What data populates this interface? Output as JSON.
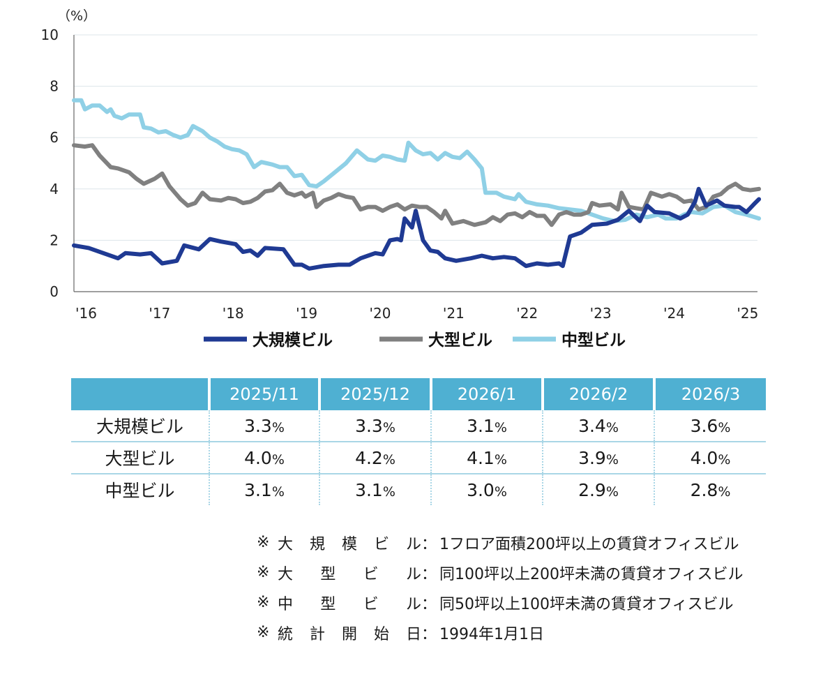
{
  "chart_data": {
    "type": "line",
    "unit_label": "（%）",
    "ylim": [
      0,
      10
    ],
    "y_ticks": [
      0,
      2,
      4,
      6,
      8,
      10
    ],
    "xlim": [
      2016.0,
      2025.3
    ],
    "x_ticks": [
      {
        "value": 2016,
        "label": "'16"
      },
      {
        "value": 2017,
        "label": "'17"
      },
      {
        "value": 2018,
        "label": "'18"
      },
      {
        "value": 2019,
        "label": "'19"
      },
      {
        "value": 2020,
        "label": "'20"
      },
      {
        "value": 2021,
        "label": "'21"
      },
      {
        "value": 2022,
        "label": "'22"
      },
      {
        "value": 2023,
        "label": "'23"
      },
      {
        "value": 2024,
        "label": "'24"
      },
      {
        "value": 2025,
        "label": "'25"
      }
    ],
    "grid": true,
    "legend": "bottom",
    "series": [
      {
        "name": "大規模ビル",
        "color": "#1f3a93",
        "points": [
          [
            2016.0,
            1.8
          ],
          [
            2016.2,
            1.7
          ],
          [
            2016.4,
            1.5
          ],
          [
            2016.6,
            1.3
          ],
          [
            2016.7,
            1.5
          ],
          [
            2016.9,
            1.45
          ],
          [
            2017.05,
            1.5
          ],
          [
            2017.2,
            1.1
          ],
          [
            2017.4,
            1.2
          ],
          [
            2017.5,
            1.8
          ],
          [
            2017.7,
            1.65
          ],
          [
            2017.85,
            2.05
          ],
          [
            2018.0,
            1.95
          ],
          [
            2018.2,
            1.85
          ],
          [
            2018.3,
            1.55
          ],
          [
            2018.4,
            1.6
          ],
          [
            2018.5,
            1.4
          ],
          [
            2018.6,
            1.7
          ],
          [
            2018.85,
            1.65
          ],
          [
            2019.0,
            1.05
          ],
          [
            2019.1,
            1.05
          ],
          [
            2019.2,
            0.9
          ],
          [
            2019.4,
            1.0
          ],
          [
            2019.6,
            1.05
          ],
          [
            2019.75,
            1.05
          ],
          [
            2019.9,
            1.3
          ],
          [
            2020.0,
            1.4
          ],
          [
            2020.1,
            1.5
          ],
          [
            2020.2,
            1.45
          ],
          [
            2020.3,
            2.0
          ],
          [
            2020.4,
            2.05
          ],
          [
            2020.45,
            2.0
          ],
          [
            2020.5,
            2.85
          ],
          [
            2020.6,
            2.5
          ],
          [
            2020.65,
            3.15
          ],
          [
            2020.75,
            2.0
          ],
          [
            2020.85,
            1.6
          ],
          [
            2020.95,
            1.55
          ],
          [
            2021.05,
            1.3
          ],
          [
            2021.2,
            1.2
          ],
          [
            2021.4,
            1.3
          ],
          [
            2021.55,
            1.4
          ],
          [
            2021.7,
            1.3
          ],
          [
            2021.85,
            1.35
          ],
          [
            2022.0,
            1.3
          ],
          [
            2022.15,
            1.0
          ],
          [
            2022.3,
            1.1
          ],
          [
            2022.45,
            1.05
          ],
          [
            2022.6,
            1.1
          ],
          [
            2022.65,
            1.0
          ],
          [
            2022.75,
            2.15
          ],
          [
            2022.9,
            2.3
          ],
          [
            2023.05,
            2.6
          ],
          [
            2023.25,
            2.65
          ],
          [
            2023.4,
            2.8
          ],
          [
            2023.55,
            3.15
          ],
          [
            2023.7,
            2.75
          ],
          [
            2023.8,
            3.35
          ],
          [
            2023.9,
            3.1
          ],
          [
            2024.1,
            3.05
          ],
          [
            2024.25,
            2.85
          ],
          [
            2024.35,
            3.0
          ],
          [
            2024.45,
            3.5
          ],
          [
            2024.5,
            4.0
          ],
          [
            2024.6,
            3.35
          ],
          [
            2024.75,
            3.55
          ],
          [
            2024.85,
            3.35
          ],
          [
            2025.0,
            3.3
          ],
          [
            2025.05,
            3.3
          ],
          [
            2025.15,
            3.1
          ],
          [
            2025.25,
            3.4
          ],
          [
            2025.32,
            3.6
          ]
        ]
      },
      {
        "name": "大型ビル",
        "color": "#808080",
        "points": [
          [
            2016.0,
            5.7
          ],
          [
            2016.15,
            5.65
          ],
          [
            2016.25,
            5.7
          ],
          [
            2016.35,
            5.3
          ],
          [
            2016.5,
            4.85
          ],
          [
            2016.6,
            4.8
          ],
          [
            2016.75,
            4.65
          ],
          [
            2016.85,
            4.4
          ],
          [
            2016.95,
            4.2
          ],
          [
            2017.1,
            4.4
          ],
          [
            2017.2,
            4.6
          ],
          [
            2017.3,
            4.1
          ],
          [
            2017.45,
            3.6
          ],
          [
            2017.55,
            3.35
          ],
          [
            2017.65,
            3.45
          ],
          [
            2017.75,
            3.85
          ],
          [
            2017.85,
            3.6
          ],
          [
            2018.0,
            3.55
          ],
          [
            2018.1,
            3.65
          ],
          [
            2018.2,
            3.6
          ],
          [
            2018.3,
            3.45
          ],
          [
            2018.4,
            3.5
          ],
          [
            2018.5,
            3.65
          ],
          [
            2018.6,
            3.9
          ],
          [
            2018.7,
            3.95
          ],
          [
            2018.8,
            4.2
          ],
          [
            2018.9,
            3.85
          ],
          [
            2019.0,
            3.75
          ],
          [
            2019.1,
            3.85
          ],
          [
            2019.15,
            3.7
          ],
          [
            2019.25,
            3.85
          ],
          [
            2019.3,
            3.3
          ],
          [
            2019.4,
            3.55
          ],
          [
            2019.5,
            3.65
          ],
          [
            2019.6,
            3.8
          ],
          [
            2019.7,
            3.7
          ],
          [
            2019.8,
            3.65
          ],
          [
            2019.9,
            3.2
          ],
          [
            2020.0,
            3.3
          ],
          [
            2020.1,
            3.3
          ],
          [
            2020.2,
            3.15
          ],
          [
            2020.3,
            3.3
          ],
          [
            2020.4,
            3.4
          ],
          [
            2020.5,
            3.2
          ],
          [
            2020.6,
            3.35
          ],
          [
            2020.7,
            3.3
          ],
          [
            2020.8,
            3.3
          ],
          [
            2020.9,
            3.1
          ],
          [
            2021.0,
            2.85
          ],
          [
            2021.05,
            3.15
          ],
          [
            2021.15,
            2.65
          ],
          [
            2021.3,
            2.75
          ],
          [
            2021.45,
            2.6
          ],
          [
            2021.6,
            2.7
          ],
          [
            2021.7,
            2.9
          ],
          [
            2021.8,
            2.75
          ],
          [
            2021.9,
            3.0
          ],
          [
            2022.0,
            3.05
          ],
          [
            2022.1,
            2.9
          ],
          [
            2022.2,
            3.1
          ],
          [
            2022.3,
            2.95
          ],
          [
            2022.4,
            2.95
          ],
          [
            2022.5,
            2.6
          ],
          [
            2022.6,
            3.0
          ],
          [
            2022.7,
            3.1
          ],
          [
            2022.8,
            3.0
          ],
          [
            2022.9,
            3.0
          ],
          [
            2023.0,
            3.1
          ],
          [
            2023.05,
            3.45
          ],
          [
            2023.15,
            3.35
          ],
          [
            2023.3,
            3.4
          ],
          [
            2023.4,
            3.2
          ],
          [
            2023.45,
            3.85
          ],
          [
            2023.55,
            3.3
          ],
          [
            2023.65,
            3.25
          ],
          [
            2023.75,
            3.2
          ],
          [
            2023.85,
            3.85
          ],
          [
            2024.0,
            3.7
          ],
          [
            2024.1,
            3.8
          ],
          [
            2024.2,
            3.7
          ],
          [
            2024.3,
            3.5
          ],
          [
            2024.4,
            3.55
          ],
          [
            2024.5,
            3.2
          ],
          [
            2024.6,
            3.3
          ],
          [
            2024.7,
            3.7
          ],
          [
            2024.8,
            3.8
          ],
          [
            2024.9,
            4.05
          ],
          [
            2025.0,
            4.2
          ],
          [
            2025.1,
            4.0
          ],
          [
            2025.2,
            3.95
          ],
          [
            2025.32,
            4.0
          ]
        ]
      },
      {
        "name": "中型ビル",
        "color": "#8fd0e6",
        "points": [
          [
            2016.0,
            7.45
          ],
          [
            2016.1,
            7.45
          ],
          [
            2016.15,
            7.1
          ],
          [
            2016.25,
            7.25
          ],
          [
            2016.35,
            7.25
          ],
          [
            2016.45,
            7.0
          ],
          [
            2016.5,
            7.1
          ],
          [
            2016.55,
            6.85
          ],
          [
            2016.65,
            6.75
          ],
          [
            2016.75,
            6.9
          ],
          [
            2016.9,
            6.9
          ],
          [
            2016.95,
            6.4
          ],
          [
            2017.05,
            6.35
          ],
          [
            2017.15,
            6.2
          ],
          [
            2017.25,
            6.25
          ],
          [
            2017.35,
            6.1
          ],
          [
            2017.45,
            6.0
          ],
          [
            2017.55,
            6.1
          ],
          [
            2017.62,
            6.45
          ],
          [
            2017.75,
            6.25
          ],
          [
            2017.85,
            6.0
          ],
          [
            2017.95,
            5.85
          ],
          [
            2018.05,
            5.65
          ],
          [
            2018.15,
            5.55
          ],
          [
            2018.25,
            5.5
          ],
          [
            2018.35,
            5.35
          ],
          [
            2018.45,
            4.85
          ],
          [
            2018.55,
            5.05
          ],
          [
            2018.7,
            4.95
          ],
          [
            2018.8,
            4.85
          ],
          [
            2018.9,
            4.85
          ],
          [
            2019.0,
            4.5
          ],
          [
            2019.1,
            4.55
          ],
          [
            2019.2,
            4.15
          ],
          [
            2019.3,
            4.1
          ],
          [
            2019.4,
            4.3
          ],
          [
            2019.55,
            4.65
          ],
          [
            2019.7,
            5.0
          ],
          [
            2019.85,
            5.5
          ],
          [
            2020.0,
            5.15
          ],
          [
            2020.1,
            5.1
          ],
          [
            2020.2,
            5.3
          ],
          [
            2020.3,
            5.25
          ],
          [
            2020.4,
            5.15
          ],
          [
            2020.5,
            5.1
          ],
          [
            2020.55,
            5.8
          ],
          [
            2020.65,
            5.5
          ],
          [
            2020.75,
            5.35
          ],
          [
            2020.85,
            5.4
          ],
          [
            2020.95,
            5.15
          ],
          [
            2021.05,
            5.4
          ],
          [
            2021.15,
            5.25
          ],
          [
            2021.25,
            5.2
          ],
          [
            2021.35,
            5.45
          ],
          [
            2021.45,
            5.15
          ],
          [
            2021.55,
            4.8
          ],
          [
            2021.6,
            3.85
          ],
          [
            2021.75,
            3.85
          ],
          [
            2021.85,
            3.7
          ],
          [
            2022.0,
            3.6
          ],
          [
            2022.05,
            3.8
          ],
          [
            2022.15,
            3.5
          ],
          [
            2022.3,
            3.4
          ],
          [
            2022.45,
            3.35
          ],
          [
            2022.6,
            3.25
          ],
          [
            2022.75,
            3.2
          ],
          [
            2022.9,
            3.15
          ],
          [
            2023.05,
            3.0
          ],
          [
            2023.2,
            2.85
          ],
          [
            2023.35,
            2.75
          ],
          [
            2023.5,
            2.8
          ],
          [
            2023.65,
            3.0
          ],
          [
            2023.8,
            2.9
          ],
          [
            2023.95,
            3.0
          ],
          [
            2024.05,
            2.85
          ],
          [
            2024.2,
            2.85
          ],
          [
            2024.3,
            3.0
          ],
          [
            2024.4,
            3.1
          ],
          [
            2024.55,
            3.05
          ],
          [
            2024.7,
            3.3
          ],
          [
            2024.85,
            3.35
          ],
          [
            2025.0,
            3.1
          ],
          [
            2025.15,
            3.0
          ],
          [
            2025.32,
            2.85
          ]
        ]
      }
    ]
  },
  "table": {
    "headers": [
      "",
      "2025/11",
      "2025/12",
      "2026/1",
      "2026/2",
      "2026/3"
    ],
    "unit": "%",
    "rows": [
      {
        "label": "大規模ビル",
        "values": [
          "3.3",
          "3.3",
          "3.1",
          "3.4",
          "3.6"
        ]
      },
      {
        "label": "大型ビル",
        "values": [
          "4.0",
          "4.2",
          "4.1",
          "3.9",
          "4.0"
        ]
      },
      {
        "label": "中型ビル",
        "values": [
          "3.1",
          "3.1",
          "3.0",
          "2.9",
          "2.8"
        ]
      }
    ]
  },
  "notes": [
    {
      "mark": "※",
      "label_chars": [
        "大",
        "規",
        "模",
        "ビ",
        "ル"
      ],
      "colon": "：",
      "desc": "1フロア面積200坪以上の賃貸オフィスビル"
    },
    {
      "mark": "※",
      "label_chars": [
        "大",
        "型",
        "ビ",
        "ル"
      ],
      "colon": "：",
      "desc": "同100坪以上200坪未満の賃貸オフィスビル"
    },
    {
      "mark": "※",
      "label_chars": [
        "中",
        "型",
        "ビ",
        "ル"
      ],
      "colon": "：",
      "desc": "同50坪以上100坪未満の賃貸オフィスビル"
    },
    {
      "mark": "※",
      "label_chars": [
        "統",
        "計",
        "開",
        "始",
        "日"
      ],
      "colon": "：",
      "desc": "1994年1月1日"
    }
  ]
}
